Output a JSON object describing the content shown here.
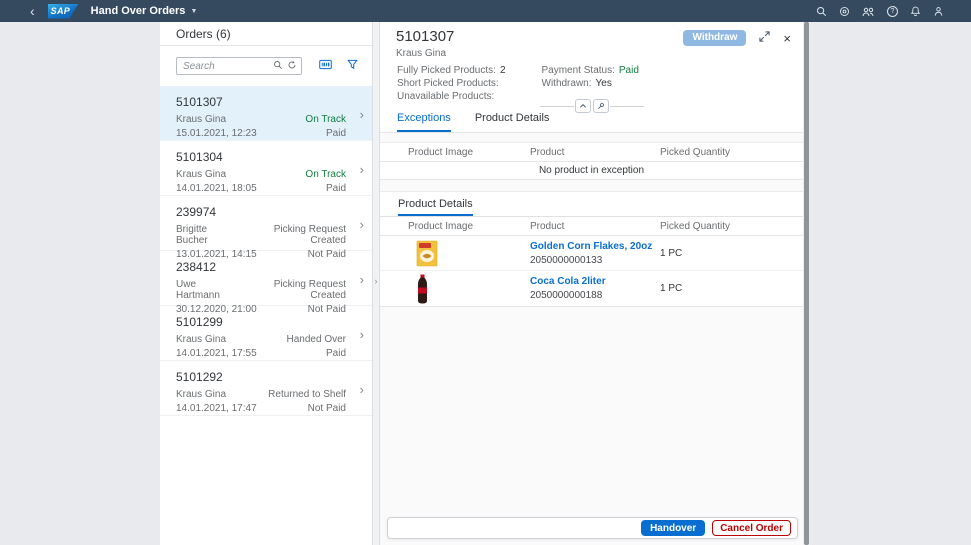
{
  "colors": {
    "shell_bar": "#354a5f",
    "accent_blue": "#0a6ed1",
    "positive_green": "#107e3e",
    "negative_red": "#bb0000",
    "selected_item_bg": "#e3f1fb"
  },
  "shell": {
    "logo": "SAP",
    "title": "Hand Over Orders",
    "icons": [
      "search-icon",
      "copilot-icon",
      "group-icon",
      "help-icon",
      "bell-icon",
      "person-icon"
    ]
  },
  "master": {
    "title": "Orders (6)",
    "search_placeholder": "Search",
    "toolbar_icons": [
      "barcode-scan-icon",
      "filter-icon"
    ],
    "orders": [
      {
        "id": "5101307",
        "customer": "Kraus Gina",
        "datetime": "15.01.2021, 12:23",
        "status": "On Track",
        "positive": true,
        "payment": "Paid",
        "selected": true
      },
      {
        "id": "5101304",
        "customer": "Kraus Gina",
        "datetime": "14.01.2021, 18:05",
        "status": "On Track",
        "positive": true,
        "payment": "Paid",
        "selected": false
      },
      {
        "id": "239974",
        "customer": "Brigitte Bucher",
        "datetime": "13.01.2021, 14:15",
        "status": "Picking Request Created",
        "positive": false,
        "payment": "Not Paid",
        "selected": false
      },
      {
        "id": "238412",
        "customer": "Uwe Hartmann",
        "datetime": "30.12.2020, 21:00",
        "status": "Picking Request Created",
        "positive": false,
        "payment": "Not Paid",
        "selected": false
      },
      {
        "id": "5101299",
        "customer": "Kraus Gina",
        "datetime": "14.01.2021, 17:55",
        "status": "Handed Over",
        "positive": false,
        "payment": "Paid",
        "selected": false
      },
      {
        "id": "5101292",
        "customer": "Kraus Gina",
        "datetime": "14.01.2021, 17:47",
        "status": "Returned to Shelf",
        "positive": false,
        "payment": "Not Paid",
        "selected": false
      }
    ]
  },
  "detail": {
    "order_id": "5101307",
    "customer": "Kraus Gina",
    "withdraw_label": "Withdraw",
    "facts": {
      "fully_picked_label": "Fully Picked Products:",
      "fully_picked_value": "2",
      "short_picked_label": "Short Picked Products:",
      "short_picked_value": "",
      "unavailable_label": "Unavailable Products:",
      "unavailable_value": "",
      "payment_status_label": "Payment Status:",
      "payment_status_value": "Paid",
      "withdrawn_label": "Withdrawn:",
      "withdrawn_value": "Yes"
    },
    "tabs": [
      {
        "label": "Exceptions",
        "active": true
      },
      {
        "label": "Product Details",
        "active": false
      }
    ],
    "exceptions_table": {
      "columns": [
        "Product Image",
        "Product",
        "Picked Quantity"
      ],
      "empty_text": "No product in exception"
    },
    "product_details": {
      "section_title": "Product Details",
      "columns": [
        "Product Image",
        "Product",
        "Picked Quantity"
      ],
      "rows": [
        {
          "product": "Golden Corn Flakes, 20oz",
          "ean": "2050000000133",
          "qty": "1 PC",
          "image": "corn-flakes"
        },
        {
          "product": "Coca Cola 2liter",
          "ean": "2050000000188",
          "qty": "1 PC",
          "image": "cola-bottle"
        }
      ]
    },
    "footer": {
      "handover_label": "Handover",
      "cancel_label": "Cancel Order"
    }
  }
}
